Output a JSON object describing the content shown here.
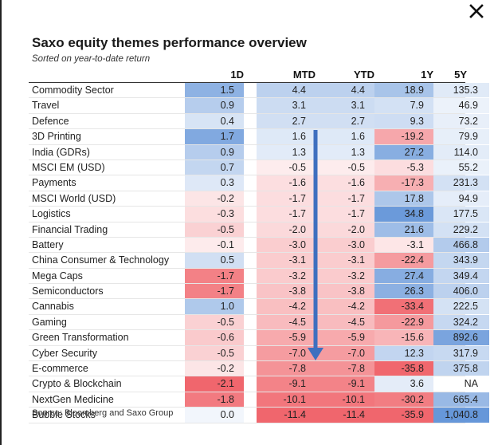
{
  "close_icon": "close-icon",
  "title": "Saxo equity themes performance overview",
  "subtitle": "Sorted on year-to-date return",
  "source": "Source: Bloomberg and Saxo Group",
  "colors": {
    "positive": "#5b8fd6",
    "negative": "#ef5b62",
    "arrow": "#3e6fbf"
  },
  "chart_data": {
    "type": "table",
    "title": "Saxo equity themes performance overview",
    "subtitle": "Sorted on year-to-date return",
    "columns": [
      "1D",
      "MTD",
      "YTD",
      "1Y",
      "5Y"
    ],
    "rows": [
      {
        "name": "Commodity Sector",
        "values": [
          "1.5",
          "4.4",
          "4.4",
          "18.9",
          "135.3"
        ]
      },
      {
        "name": "Travel",
        "values": [
          "0.9",
          "3.1",
          "3.1",
          "7.9",
          "46.9"
        ]
      },
      {
        "name": "Defence",
        "values": [
          "0.4",
          "2.7",
          "2.7",
          "9.3",
          "73.2"
        ]
      },
      {
        "name": "3D Printing",
        "values": [
          "1.7",
          "1.6",
          "1.6",
          "-19.2",
          "79.9"
        ]
      },
      {
        "name": "India (GDRs)",
        "values": [
          "0.9",
          "1.3",
          "1.3",
          "27.2",
          "114.0"
        ]
      },
      {
        "name": "MSCI EM (USD)",
        "values": [
          "0.7",
          "-0.5",
          "-0.5",
          "-5.3",
          "55.2"
        ]
      },
      {
        "name": "Payments",
        "values": [
          "0.3",
          "-1.6",
          "-1.6",
          "-17.3",
          "231.3"
        ]
      },
      {
        "name": "MSCI World (USD)",
        "values": [
          "-0.2",
          "-1.7",
          "-1.7",
          "17.8",
          "94.9"
        ]
      },
      {
        "name": "Logistics",
        "values": [
          "-0.3",
          "-1.7",
          "-1.7",
          "34.8",
          "177.5"
        ]
      },
      {
        "name": "Financial Trading",
        "values": [
          "-0.5",
          "-2.0",
          "-2.0",
          "21.6",
          "229.2"
        ]
      },
      {
        "name": "Battery",
        "values": [
          "-0.1",
          "-3.0",
          "-3.0",
          "-3.1",
          "466.8"
        ]
      },
      {
        "name": "China Consumer & Technology",
        "values": [
          "0.5",
          "-3.1",
          "-3.1",
          "-22.4",
          "343.9"
        ]
      },
      {
        "name": "Mega Caps",
        "values": [
          "-1.7",
          "-3.2",
          "-3.2",
          "27.4",
          "349.4"
        ]
      },
      {
        "name": "Semiconductors",
        "values": [
          "-1.7",
          "-3.8",
          "-3.8",
          "26.3",
          "406.0"
        ]
      },
      {
        "name": "Cannabis",
        "values": [
          "1.0",
          "-4.2",
          "-4.2",
          "-33.4",
          "222.5"
        ]
      },
      {
        "name": "Gaming",
        "values": [
          "-0.5",
          "-4.5",
          "-4.5",
          "-22.9",
          "324.2"
        ]
      },
      {
        "name": "Green Transformation",
        "values": [
          "-0.6",
          "-5.9",
          "-5.9",
          "-15.6",
          "892.6"
        ]
      },
      {
        "name": "Cyber Security",
        "values": [
          "-0.5",
          "-7.0",
          "-7.0",
          "12.3",
          "317.9"
        ]
      },
      {
        "name": "E-commerce",
        "values": [
          "-0.2",
          "-7.8",
          "-7.8",
          "-35.8",
          "375.8"
        ]
      },
      {
        "name": "Crypto & Blockchain",
        "values": [
          "-2.1",
          "-9.1",
          "-9.1",
          "3.6",
          "NA"
        ]
      },
      {
        "name": "NextGen Medicine",
        "values": [
          "-1.8",
          "-10.1",
          "-10.1",
          "-30.2",
          "665.4"
        ]
      },
      {
        "name": "Bubble Stocks",
        "values": [
          "0.0",
          "-11.4",
          "-11.4",
          "-35.9",
          "1,040.8"
        ]
      }
    ]
  }
}
